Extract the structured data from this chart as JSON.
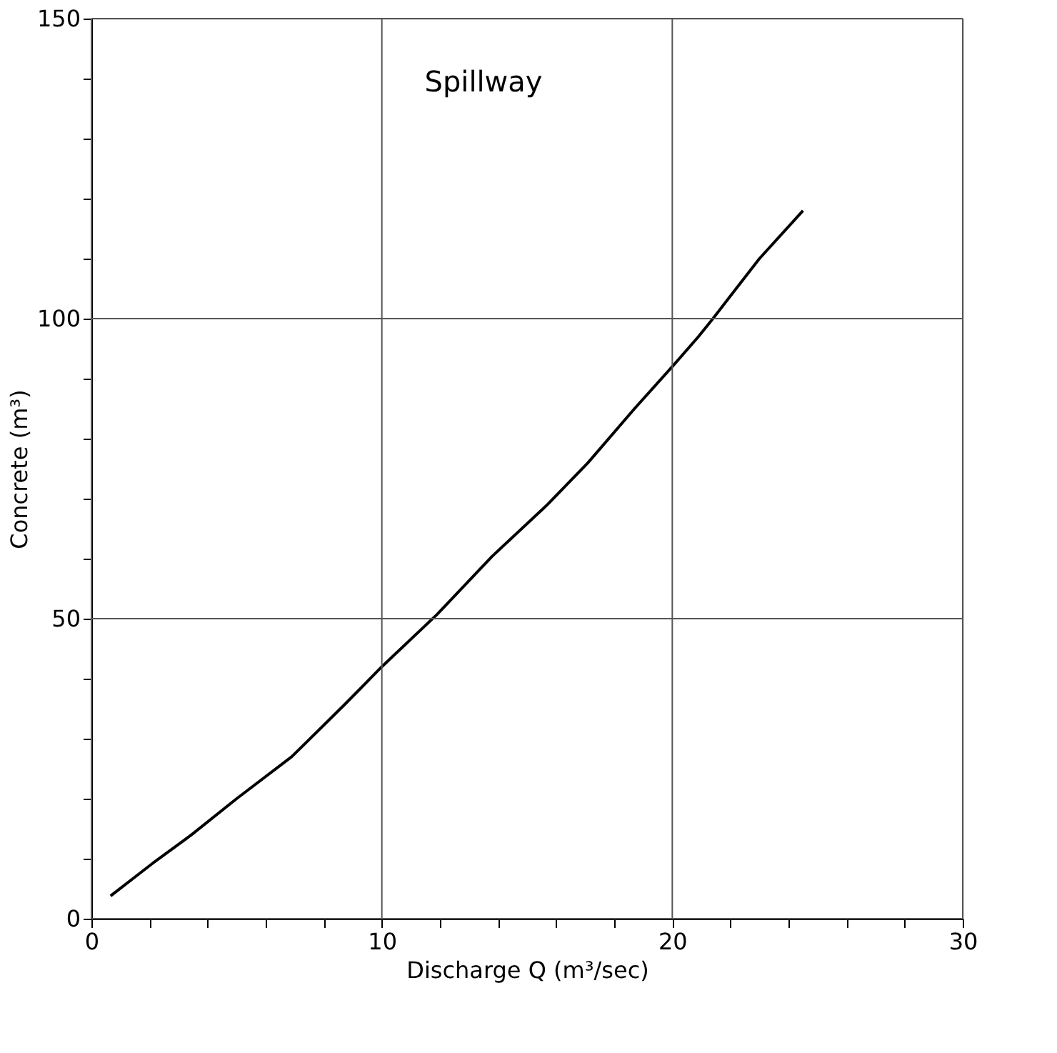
{
  "chart_data": {
    "type": "line",
    "title": "Spillway",
    "xlabel": "Discharge Q (m³/sec)",
    "ylabel": "Concrete (m³)",
    "x": [
      0.66,
      2.1,
      3.45,
      5.0,
      6.9,
      8.7,
      10,
      11.9,
      13.8,
      15.7,
      17.1,
      18.7,
      20,
      20.9,
      21.4,
      23,
      24.5
    ],
    "series": [
      {
        "color": "#000000",
        "values": [
          3.8,
          9.2,
          14,
          20,
          27,
          35.6,
          42,
          50.7,
          60.4,
          69,
          76,
          85,
          92,
          97,
          100,
          110,
          118
        ]
      }
    ],
    "xlim": [
      0,
      30
    ],
    "ylim": [
      0,
      150
    ],
    "xticks": [
      0,
      {
        "value": 2,
        "label": null
      },
      {
        "value": 4,
        "label": null
      },
      {
        "value": 6,
        "label": null
      },
      {
        "value": 8,
        "label": null
      },
      10,
      {
        "value": 12,
        "label": null
      },
      {
        "value": 14,
        "label": null
      },
      {
        "value": 16,
        "label": null
      },
      {
        "value": 18,
        "label": null
      },
      20,
      {
        "value": 22,
        "label": null
      },
      {
        "value": 24,
        "label": null
      },
      {
        "value": 26,
        "label": null
      },
      {
        "value": 28,
        "label": null
      },
      30
    ],
    "yticks": [
      0,
      {
        "value": 10,
        "label": null
      },
      {
        "value": 20,
        "label": null
      },
      {
        "value": 30,
        "label": null
      },
      {
        "value": 40,
        "label": null
      },
      50,
      {
        "value": 60,
        "label": null
      },
      {
        "value": 70,
        "label": null
      },
      {
        "value": 80,
        "label": null
      },
      {
        "value": 90,
        "label": null
      },
      100,
      {
        "value": 110,
        "label": null
      },
      {
        "value": 120,
        "label": null
      },
      {
        "value": 130,
        "label": null
      },
      {
        "value": 140,
        "label": null
      },
      150
    ],
    "grid": true,
    "marker": "none",
    "line_style": "solid"
  }
}
